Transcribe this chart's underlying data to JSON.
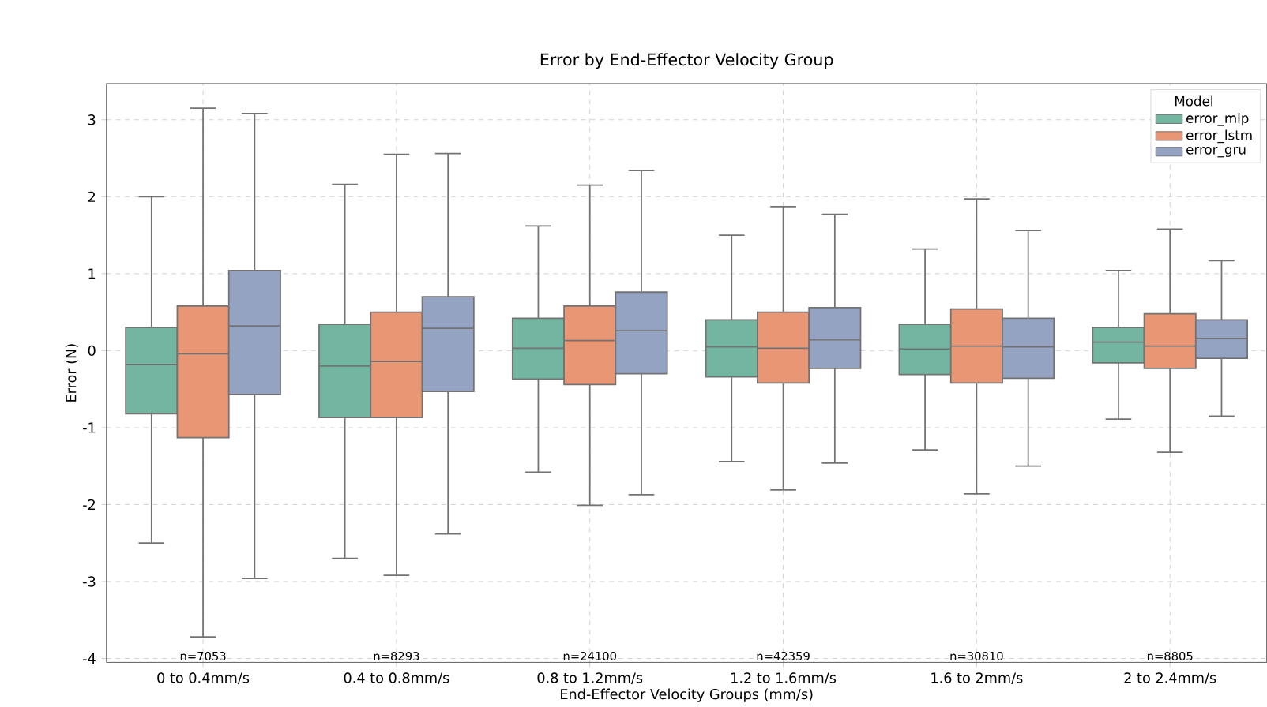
{
  "chart_data": {
    "type": "box",
    "title": "Error by End-Effector Velocity Group",
    "xlabel": "End-Effector Velocity Groups (mm/s)",
    "ylabel": "Error (N)",
    "legend_title": "Model",
    "legend": "top right",
    "grid": true,
    "categories": [
      "0 to 0.4mm/s",
      "0.4 to 0.8mm/s",
      "0.8 to 1.2mm/s",
      "1.2 to 1.6mm/s",
      "1.6 to 2mm/s",
      "2 to 2.4mm/s"
    ],
    "ylim": [
      -4.05,
      3.47
    ],
    "yticks": [
      -4,
      -3,
      -2,
      -1,
      0,
      1,
      2,
      3
    ],
    "series": [
      {
        "name": "error_mlp",
        "color": "#72b6a1",
        "boxes": [
          {
            "low": -2.5,
            "q1": -0.82,
            "median": -0.18,
            "q3": 0.3,
            "high": 2.0
          },
          {
            "low": -2.7,
            "q1": -0.87,
            "median": -0.2,
            "q3": 0.34,
            "high": 2.16
          },
          {
            "low": -1.58,
            "q1": -0.37,
            "median": 0.03,
            "q3": 0.42,
            "high": 1.62
          },
          {
            "low": -1.44,
            "q1": -0.34,
            "median": 0.05,
            "q3": 0.4,
            "high": 1.5
          },
          {
            "low": -1.29,
            "q1": -0.31,
            "median": 0.02,
            "q3": 0.34,
            "high": 1.32
          },
          {
            "low": -0.89,
            "q1": -0.16,
            "median": 0.11,
            "q3": 0.3,
            "high": 1.04
          }
        ]
      },
      {
        "name": "error_lstm",
        "color": "#e99675",
        "boxes": [
          {
            "low": -3.72,
            "q1": -1.13,
            "median": -0.04,
            "q3": 0.58,
            "high": 3.15
          },
          {
            "low": -2.92,
            "q1": -0.87,
            "median": -0.14,
            "q3": 0.5,
            "high": 2.55
          },
          {
            "low": -2.01,
            "q1": -0.44,
            "median": 0.13,
            "q3": 0.58,
            "high": 2.15
          },
          {
            "low": -1.81,
            "q1": -0.42,
            "median": 0.03,
            "q3": 0.5,
            "high": 1.87
          },
          {
            "low": -1.86,
            "q1": -0.42,
            "median": 0.06,
            "q3": 0.54,
            "high": 1.97
          },
          {
            "low": -1.32,
            "q1": -0.23,
            "median": 0.06,
            "q3": 0.48,
            "high": 1.58
          }
        ]
      },
      {
        "name": "error_gru",
        "color": "#95a3c3",
        "boxes": [
          {
            "low": -2.96,
            "q1": -0.57,
            "median": 0.32,
            "q3": 1.04,
            "high": 3.08
          },
          {
            "low": -2.38,
            "q1": -0.53,
            "median": 0.29,
            "q3": 0.7,
            "high": 2.56
          },
          {
            "low": -1.87,
            "q1": -0.3,
            "median": 0.26,
            "q3": 0.76,
            "high": 2.34
          },
          {
            "low": -1.46,
            "q1": -0.23,
            "median": 0.14,
            "q3": 0.56,
            "high": 1.77
          },
          {
            "low": -1.5,
            "q1": -0.36,
            "median": 0.05,
            "q3": 0.42,
            "high": 1.56
          },
          {
            "low": -0.85,
            "q1": -0.1,
            "median": 0.16,
            "q3": 0.4,
            "high": 1.17
          }
        ]
      }
    ],
    "annotations": [
      "n=7053",
      "n=8293",
      "n=24100",
      "n=42359",
      "n=30810",
      "n=8805"
    ]
  }
}
